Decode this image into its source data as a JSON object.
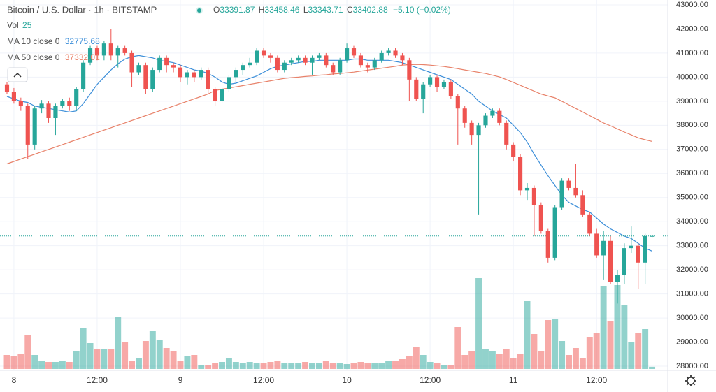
{
  "chart_data": {
    "type": "candlestick",
    "title": "Bitcoin / U.S. Dollar · 1h · BITSTAMP",
    "ohlc_labels": [
      "O",
      "H",
      "L",
      "C"
    ],
    "change": "−5.10 (−0.02%)",
    "up_color": "#26a69a",
    "down_color": "#ef5350",
    "open": [
      39700,
      39400,
      39000,
      38800,
      37200,
      38700,
      38900,
      38300,
      38800,
      39000,
      38800,
      39500,
      40600,
      41200,
      40900,
      41400,
      40900,
      41200,
      41000,
      40200,
      40500,
      39500,
      40300,
      40800,
      40500,
      40400,
      40000,
      40200,
      40000,
      40300,
      39500,
      39000,
      39500,
      40000,
      40300,
      40500,
      40600,
      41100,
      40900,
      40800,
      40300,
      40600,
      40700,
      40800,
      40600,
      40800,
      40900,
      40500,
      40200,
      40700,
      41200,
      40900,
      40500,
      40400,
      40700,
      41000,
      41100,
      40900,
      40700,
      39900,
      39100,
      39700,
      40000,
      39600,
      39800,
      39200,
      38700,
      38100,
      37600,
      38000,
      38400,
      38600,
      38100,
      37200,
      36700,
      35300,
      35400,
      34700,
      33600,
      32500,
      34600,
      35700,
      35400,
      35100,
      34300,
      33500,
      32600,
      33200,
      31500,
      31800,
      32900,
      33000,
      32300,
      33391.87
    ],
    "high": [
      39800,
      39550,
      39150,
      38900,
      38800,
      39050,
      39000,
      38900,
      39100,
      39150,
      39600,
      40700,
      41300,
      41300,
      41500,
      42000,
      41300,
      41300,
      41100,
      40600,
      40600,
      40400,
      40900,
      40900,
      40600,
      40500,
      40300,
      40300,
      40400,
      40400,
      39600,
      39600,
      40100,
      40400,
      40600,
      40800,
      41200,
      41200,
      41000,
      40900,
      40700,
      40800,
      40900,
      40900,
      40900,
      41000,
      41000,
      40600,
      40800,
      41400,
      41300,
      41000,
      40600,
      40800,
      41100,
      41200,
      41200,
      41000,
      40800,
      40000,
      39800,
      40100,
      40100,
      39900,
      39900,
      39300,
      38800,
      38200,
      38100,
      38500,
      38700,
      38700,
      38200,
      37300,
      36800,
      35600,
      35500,
      34800,
      33700,
      34700,
      35800,
      35800,
      36400,
      35300,
      34400,
      33700,
      33600,
      33400,
      32000,
      33100,
      33800,
      33100,
      33500,
      33458.46
    ],
    "low": [
      39300,
      38900,
      38600,
      36600,
      37000,
      38500,
      38100,
      37600,
      38700,
      38600,
      38600,
      39400,
      40500,
      40700,
      40700,
      40700,
      40400,
      40900,
      39600,
      40100,
      39300,
      39400,
      40200,
      40200,
      40200,
      39800,
      39700,
      39800,
      39900,
      39300,
      38800,
      38900,
      39400,
      39800,
      40100,
      40400,
      40500,
      40800,
      40600,
      40200,
      40200,
      40500,
      40600,
      40500,
      40100,
      40700,
      40400,
      40100,
      40100,
      40600,
      40800,
      40400,
      40200,
      40300,
      40600,
      40900,
      40800,
      40500,
      39000,
      39000,
      38500,
      39600,
      39400,
      39500,
      39100,
      37200,
      37900,
      37200,
      34300,
      37900,
      38300,
      38000,
      37000,
      36500,
      35100,
      34900,
      33400,
      33500,
      32300,
      32400,
      34500,
      35300,
      35000,
      34200,
      33400,
      32500,
      31600,
      31400,
      30600,
      31400,
      32700,
      31200,
      31400,
      33343.71
    ],
    "close": [
      39400,
      39000,
      38800,
      37200,
      38700,
      38900,
      38300,
      38800,
      39000,
      38800,
      39500,
      40600,
      41200,
      40900,
      41400,
      40900,
      41200,
      41000,
      40200,
      40500,
      39500,
      40300,
      40800,
      40500,
      40400,
      40000,
      40200,
      40000,
      40300,
      39500,
      39000,
      39500,
      40000,
      40300,
      40500,
      40600,
      41100,
      40900,
      40800,
      40300,
      40600,
      40700,
      40800,
      40600,
      40800,
      40900,
      40500,
      40200,
      40700,
      41200,
      40900,
      40500,
      40400,
      40700,
      41000,
      41100,
      40900,
      40700,
      39900,
      39100,
      39700,
      40000,
      39600,
      39800,
      39200,
      38700,
      38100,
      37600,
      38000,
      38400,
      38600,
      38100,
      37200,
      36700,
      35300,
      35400,
      34700,
      33600,
      32500,
      34600,
      35700,
      35400,
      35100,
      34300,
      33500,
      32600,
      33200,
      31500,
      31800,
      32900,
      33000,
      32300,
      33400,
      33402.88
    ],
    "volume": {
      "name": "Vol",
      "ylim": [
        0,
        1200
      ],
      "values": [
        160,
        144,
        176,
        392,
        160,
        96,
        80,
        80,
        96,
        80,
        200,
        464,
        296,
        224,
        224,
        224,
        600,
        304,
        96,
        120,
        320,
        440,
        336,
        240,
        200,
        96,
        144,
        160,
        48,
        48,
        64,
        80,
        128,
        80,
        64,
        80,
        72,
        64,
        80,
        88,
        72,
        64,
        72,
        80,
        64,
        72,
        88,
        64,
        72,
        56,
        64,
        80,
        72,
        64,
        72,
        88,
        96,
        112,
        144,
        256,
        160,
        80,
        64,
        48,
        48,
        480,
        160,
        200,
        1040,
        224,
        200,
        176,
        224,
        120,
        176,
        776,
        400,
        200,
        560,
        576,
        320,
        160,
        240,
        120,
        360,
        416,
        944,
        544,
        960,
        736,
        304,
        416,
        456,
        25
      ]
    },
    "series": [
      {
        "name": "MA 10 close 0",
        "color": "#3d8fd9",
        "values": [
          39200,
          39100,
          39000,
          38950,
          38800,
          38750,
          38700,
          38650,
          38600,
          38550,
          38600,
          38900,
          39300,
          39700,
          40000,
          40300,
          40550,
          40750,
          40850,
          40900,
          40850,
          40800,
          40700,
          40650,
          40600,
          40500,
          40400,
          40300,
          40250,
          40150,
          40000,
          39800,
          39700,
          39750,
          39850,
          39950,
          40050,
          40200,
          40350,
          40450,
          40500,
          40550,
          40600,
          40650,
          40650,
          40700,
          40700,
          40700,
          40700,
          40700,
          40750,
          40750,
          40700,
          40700,
          40700,
          40700,
          40650,
          40600,
          40500,
          40400,
          40300,
          40200,
          40100,
          40000,
          39900,
          39700,
          39500,
          39300,
          39000,
          38800,
          38600,
          38450,
          38300,
          38000,
          37700,
          37300,
          36800,
          36350,
          35900,
          35500,
          35100,
          34800,
          34650,
          34500,
          34400,
          34150,
          33900,
          33700,
          33550,
          33400,
          33300,
          33100,
          32900,
          32775.68
        ]
      },
      {
        "name": "MA 50 close 0",
        "color": "#e8826a",
        "values": [
          36400,
          36500,
          36600,
          36700,
          36800,
          36900,
          37000,
          37100,
          37200,
          37300,
          37400,
          37500,
          37600,
          37700,
          37800,
          37900,
          38000,
          38100,
          38200,
          38300,
          38400,
          38500,
          38600,
          38700,
          38800,
          38900,
          39000,
          39100,
          39200,
          39300,
          39450,
          39500,
          39550,
          39600,
          39650,
          39700,
          39750,
          39800,
          39850,
          39900,
          39950,
          39980,
          40000,
          40030,
          40050,
          40080,
          40100,
          40130,
          40150,
          40180,
          40210,
          40250,
          40290,
          40330,
          40370,
          40410,
          40450,
          40500,
          40520,
          40530,
          40520,
          40500,
          40470,
          40440,
          40400,
          40350,
          40300,
          40250,
          40200,
          40150,
          40080,
          40010,
          39900,
          39780,
          39660,
          39540,
          39420,
          39300,
          39220,
          39140,
          39000,
          38850,
          38700,
          38550,
          38400,
          38250,
          38100,
          37980,
          37850,
          37720,
          37600,
          37480,
          37400,
          37332.01
        ]
      }
    ],
    "ylim": [
      28000,
      43000
    ],
    "yticks": [
      {
        "value": 28000,
        "label": "28000.00"
      },
      {
        "value": 29000,
        "label": "29000.00"
      },
      {
        "value": 30000,
        "label": "30000.00"
      },
      {
        "value": 31000,
        "label": "31000.00"
      },
      {
        "value": 32000,
        "label": "32000.00"
      },
      {
        "value": 33000,
        "label": "33000.00"
      },
      {
        "value": 34000,
        "label": "34000.00"
      },
      {
        "value": 35000,
        "label": "35000.00"
      },
      {
        "value": 36000,
        "label": "36000.00"
      },
      {
        "value": 37000,
        "label": "37000.00"
      },
      {
        "value": 38000,
        "label": "38000.00"
      },
      {
        "value": 39000,
        "label": "39000.00"
      },
      {
        "value": 40000,
        "label": "40000.00"
      },
      {
        "value": 41000,
        "label": "41000.00"
      },
      {
        "value": 42000,
        "label": "42000.00"
      },
      {
        "value": 43000,
        "label": "43000.00"
      }
    ],
    "xticks": [
      {
        "value": 1,
        "label": "8"
      },
      {
        "value": 13,
        "label": "12:00"
      },
      {
        "value": 25,
        "label": "9"
      },
      {
        "value": 37,
        "label": "12:00"
      },
      {
        "value": 49,
        "label": "10"
      },
      {
        "value": 61,
        "label": "12:00"
      },
      {
        "value": 73,
        "label": "11"
      },
      {
        "value": 85,
        "label": "12:00"
      }
    ],
    "grid": true
  }
}
